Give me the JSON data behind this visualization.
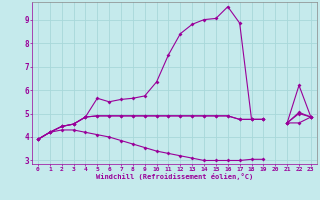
{
  "xlabel": "Windchill (Refroidissement éolien,°C)",
  "background_color": "#c5eaec",
  "grid_color": "#a8d8da",
  "line_color": "#990099",
  "x": [
    0,
    1,
    2,
    3,
    4,
    5,
    6,
    7,
    8,
    9,
    10,
    11,
    12,
    13,
    14,
    15,
    16,
    17,
    18,
    19,
    20,
    21,
    22,
    23
  ],
  "series1": [
    3.9,
    4.2,
    4.45,
    4.55,
    4.85,
    5.65,
    5.5,
    5.6,
    5.65,
    5.75,
    6.35,
    7.5,
    8.4,
    8.8,
    9.0,
    9.05,
    9.55,
    8.85,
    4.75,
    4.75,
    null,
    4.6,
    6.2,
    4.85
  ],
  "series2": [
    3.9,
    4.2,
    4.45,
    4.55,
    4.85,
    4.9,
    4.9,
    4.9,
    4.9,
    4.9,
    4.9,
    4.9,
    4.9,
    4.9,
    4.9,
    4.9,
    4.9,
    4.75,
    4.75,
    4.75,
    null,
    4.6,
    4.6,
    4.85
  ],
  "series3": [
    3.9,
    4.2,
    4.45,
    4.55,
    4.85,
    4.9,
    4.9,
    4.9,
    4.9,
    4.9,
    4.9,
    4.9,
    4.9,
    4.9,
    4.9,
    4.9,
    4.9,
    4.75,
    4.75,
    4.75,
    null,
    4.6,
    5.0,
    4.85
  ],
  "series4": [
    3.9,
    4.2,
    4.3,
    4.3,
    4.2,
    4.1,
    4.0,
    3.85,
    3.7,
    3.55,
    3.4,
    3.3,
    3.2,
    3.1,
    3.0,
    3.0,
    3.0,
    3.0,
    3.05,
    3.05,
    null,
    4.6,
    5.05,
    4.85
  ],
  "ylim": [
    2.85,
    9.75
  ],
  "xlim": [
    -0.5,
    23.5
  ],
  "yticks": [
    3,
    4,
    5,
    6,
    7,
    8,
    9
  ],
  "xticks": [
    0,
    1,
    2,
    3,
    4,
    5,
    6,
    7,
    8,
    9,
    10,
    11,
    12,
    13,
    14,
    15,
    16,
    17,
    18,
    19,
    20,
    21,
    22,
    23
  ]
}
